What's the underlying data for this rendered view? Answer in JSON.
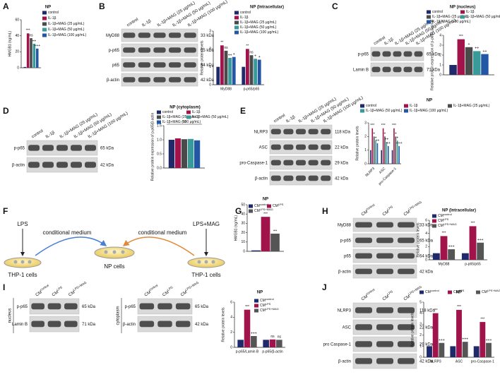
{
  "figure": {
    "letters": [
      "A",
      "B",
      "C",
      "D",
      "E",
      "F",
      "G",
      "H",
      "I",
      "J"
    ],
    "blots": [
      {
        "lanes": [
          "control",
          "IL-1β",
          "IL-1β+MAG (25 μg/mL)",
          "IL-1β+MAG (50 μg/mL)",
          "IL-1β+MAG (100 μg/mL)"
        ],
        "rows": [
          {
            "protein": "MyD88",
            "kda": "33 kDa"
          },
          {
            "protein": "p-p65",
            "kda": "65 kDa"
          },
          {
            "protein": "p65",
            "kda": "64 kDa"
          },
          {
            "protein": "β-actin",
            "kda": "42 kDa"
          }
        ]
      },
      {
        "lanes": [
          "control",
          "IL-1β",
          "IL-1β+MAG (25 μg/mL)",
          "IL-1β+MAG (50 μg/mL)",
          "IL-1β+MAG (100 μg/mL)"
        ],
        "rows": [
          {
            "protein": "p-p65",
            "kda": "65 kDa"
          },
          {
            "protein": "Lamin B",
            "kda": "71 kDa"
          }
        ]
      },
      {
        "lanes": [
          "control",
          "IL-1β",
          "IL-1β+MAG (25 μg/mL)",
          "IL-1β+MAG (50 μg/mL)",
          "IL-1β+MAG (100 μg/mL)"
        ],
        "rows": [
          {
            "protein": "p-p65",
            "kda": "65 kDa"
          },
          {
            "protein": "β-actin",
            "kda": "42 kDa"
          }
        ]
      },
      {
        "lanes": [
          "control",
          "IL-1β",
          "IL-1β+MAG (25 μg/mL)",
          "IL-1β+MAG (50 μg/mL)",
          "IL-1β+MAG (100 μg/mL)"
        ],
        "rows": [
          {
            "protein": "NLRP3",
            "kda": "118 kDa"
          },
          {
            "protein": "ASC",
            "kda": "22 kDa"
          },
          {
            "protein": "pro-Caspase-1",
            "kda": "29 kDa"
          },
          {
            "protein": "β-actin",
            "kda": "42 kDa"
          }
        ]
      },
      {
        "lanes": [
          {
            "base": "CM",
            "sup": "control"
          },
          {
            "base": "CM",
            "sup": "LPS"
          },
          {
            "base": "CM",
            "sup": "LPS+MAG"
          }
        ],
        "rows": [
          {
            "protein": "MyD88",
            "kda": "33 kDa"
          },
          {
            "protein": "p-p65",
            "kda": "65 kDa"
          },
          {
            "protein": "p65",
            "kda": "64 kDa"
          },
          {
            "protein": "β-actin",
            "kda": "42 kDa"
          }
        ]
      },
      {
        "side": "nucleus",
        "lanes": [
          {
            "base": "CM",
            "sup": "control"
          },
          {
            "base": "CM",
            "sup": "LPS"
          },
          {
            "base": "CM",
            "sup": "LPS+MAG"
          }
        ],
        "rows": [
          {
            "protein": "p-p65",
            "kda": "65 kDa"
          },
          {
            "protein": "Lamin B",
            "kda": "71 kDa"
          }
        ]
      },
      {
        "side": "cytoplasm",
        "lanes": [
          {
            "base": "CM",
            "sup": "control"
          },
          {
            "base": "CM",
            "sup": "LPS"
          },
          {
            "base": "CM",
            "sup": "LPS+MAG"
          }
        ],
        "rows": [
          {
            "protein": "p-p65",
            "kda": "65 kDa"
          },
          {
            "protein": "β-actin",
            "kda": "42 kDa"
          }
        ]
      },
      {
        "lanes": [
          {
            "base": "CM",
            "sup": "control"
          },
          {
            "base": "CM",
            "sup": "LPS"
          },
          {
            "base": "CM",
            "sup": "LPS+MAG"
          }
        ],
        "rows": [
          {
            "protein": "NLRP3",
            "kda": "118 kDa"
          },
          {
            "protein": "ASC",
            "kda": "22 kDa"
          },
          {
            "protein": "pro Caspase-1",
            "kda": "29 kDa"
          },
          {
            "protein": "β-actin",
            "kda": "42 kDa"
          }
        ]
      }
    ],
    "diagram": {
      "left_stimulus": "LPS",
      "right_stimulus": "LPS+MAG",
      "left_arrow": "conditional medium",
      "right_arrow": "conditional medium",
      "left_cells": "THP-1 cells",
      "center_cells": "NP cells",
      "right_cells": "THP-1 cells"
    }
  },
  "chart_data": [
    {
      "type": "bar",
      "title": "NP",
      "ylabel": "HMGB1 (ng/mL)",
      "categories": [
        null
      ],
      "ylim": [
        0,
        60
      ],
      "yticks": [
        0,
        20,
        40,
        60
      ],
      "series": [
        {
          "name": "control",
          "color": "#1f2a6b",
          "values": [
            1
          ],
          "sig": [
            null
          ]
        },
        {
          "name": "IL-1β",
          "color": "#a0144b",
          "values": [
            43
          ],
          "sig": [
            "***"
          ]
        },
        {
          "name": "IL-1β+MAG (25 μg/mL)",
          "color": "#4a4a4a",
          "values": [
            37
          ],
          "sig": [
            "ns"
          ]
        },
        {
          "name": "IL-1β+MAG (50 μg/mL)",
          "color": "#3a9a9a",
          "values": [
            30
          ],
          "sig": [
            "++"
          ]
        },
        {
          "name": "IL-1β+MAG (100 μg/mL)",
          "color": "#2456a6",
          "values": [
            24
          ],
          "sig": [
            "+++"
          ]
        }
      ]
    },
    {
      "type": "bar",
      "title": "NP (Intracellular)",
      "ylabel": "Relative protein levels",
      "categories": [
        "MyD88",
        "p-p65/p65"
      ],
      "ylim": [
        0,
        3
      ],
      "yticks": [
        0,
        1,
        2,
        3
      ],
      "series": [
        {
          "name": "control",
          "color": "#1f2a6b",
          "values": [
            1,
            1
          ],
          "sig": [
            null,
            null
          ]
        },
        {
          "name": "IL-1β",
          "color": "#a0144b",
          "values": [
            2.2,
            2.0
          ],
          "sig": [
            "**",
            "**"
          ]
        },
        {
          "name": "IL-1β+MAG (25 μg/mL)",
          "color": "#4a4a4a",
          "values": [
            1.9,
            1.65
          ],
          "sig": [
            "ns",
            "ns"
          ]
        },
        {
          "name": "IL-1β+MAG (50 μg/mL)",
          "color": "#3a9a9a",
          "values": [
            1.5,
            1.45
          ],
          "sig": [
            "++",
            "+"
          ]
        },
        {
          "name": "IL-1β+MAG (100 μg/mL)",
          "color": "#2456a6",
          "values": [
            1.55,
            1.4
          ],
          "sig": [
            "+",
            "+"
          ]
        }
      ]
    },
    {
      "type": "bar",
      "title": "NP (nucleus)",
      "ylabel": "Relative protein expression of p-p65/Lamin B",
      "categories": [
        null
      ],
      "ylim": [
        0,
        4
      ],
      "yticks": [
        0,
        1,
        2,
        3,
        4
      ],
      "series": [
        {
          "name": "control",
          "color": "#1f2a6b",
          "values": [
            1
          ],
          "sig": [
            null
          ]
        },
        {
          "name": "IL-1β",
          "color": "#a0144b",
          "values": [
            3.6
          ],
          "sig": [
            "***"
          ]
        },
        {
          "name": "IL-1β+MAG (25 μg/mL)",
          "color": "#4a4a4a",
          "values": [
            2.8
          ],
          "sig": [
            "+"
          ]
        },
        {
          "name": "IL-1β+MAG (50 μg/mL)",
          "color": "#3a9a9a",
          "values": [
            2.4
          ],
          "sig": [
            "++"
          ]
        },
        {
          "name": "IL-1β+MAG (100 μg/mL)",
          "color": "#2456a6",
          "values": [
            2.1
          ],
          "sig": [
            "++"
          ]
        }
      ]
    },
    {
      "type": "bar",
      "title": "NP (cytoplasm)",
      "ylabel": "Relative protein expression of p-p65/β-actin",
      "categories": [
        null
      ],
      "ylim": [
        0,
        1.5
      ],
      "yticks": [
        {
          "value": 0,
          "label": "0.0"
        },
        0.5,
        {
          "value": 1,
          "label": "1.0"
        },
        1.5
      ],
      "annotation": "ns",
      "series": [
        {
          "name": "control",
          "color": "#1f2a6b",
          "values": [
            1.0
          ],
          "sig": [
            null
          ]
        },
        {
          "name": "IL-1β",
          "color": "#a0144b",
          "values": [
            1.05
          ],
          "sig": [
            null
          ]
        },
        {
          "name": "IL-1β+MAG (25 μg/mL)",
          "color": "#4a4a4a",
          "values": [
            1.02
          ],
          "sig": [
            null
          ]
        },
        {
          "name": "IL-1β+MAG (50 μg/mL)",
          "color": "#3a9a9a",
          "values": [
            1.03
          ],
          "sig": [
            null
          ]
        },
        {
          "name": "IL-1β+MAG (100 μg/mL)",
          "color": "#2456a6",
          "values": [
            0.98
          ],
          "sig": [
            null
          ]
        }
      ]
    },
    {
      "type": "bar",
      "title": "NP",
      "ylabel": "Relative protein levels",
      "categories": [
        "NLRP3",
        "ASC",
        "pro-Caspase-1"
      ],
      "ylim": [
        0,
        3
      ],
      "yticks": [
        0,
        1,
        2,
        3
      ],
      "series": [
        {
          "name": "control",
          "color": "#1f2a6b",
          "values": [
            1,
            1,
            1
          ],
          "sig": [
            null,
            null,
            null
          ]
        },
        {
          "name": "IL-1β",
          "color": "#a0144b",
          "values": [
            2.6,
            2.6,
            2.6
          ],
          "sig": [
            "***",
            "***",
            "***"
          ]
        },
        {
          "name": "IL-1β+MAG (25 μg/mL)",
          "color": "#4a4a4a",
          "values": [
            2.0,
            2.0,
            2.0
          ],
          "sig": [
            "+",
            "+",
            "+"
          ]
        },
        {
          "name": "IL-1β+MAG (50 μg/mL)",
          "color": "#3a9a9a",
          "values": [
            1.7,
            1.6,
            1.7
          ],
          "sig": [
            "+",
            "++",
            "+"
          ]
        },
        {
          "name": "IL-1β+MAG (100 μg/mL)",
          "color": "#2456a6",
          "values": [
            1.5,
            1.3,
            1.3
          ],
          "sig": [
            "++",
            "++",
            "+++"
          ]
        }
      ]
    },
    {
      "type": "bar",
      "title": "NP",
      "ylabel": "HMGB1 (ng/mL)",
      "categories": [
        null
      ],
      "ylim": [
        0,
        50
      ],
      "yticks": [
        0,
        10,
        20,
        30,
        40,
        50
      ],
      "series": [
        {
          "name": "CM",
          "name_sup": "control",
          "color": "#1f2a6b",
          "values": [
            1
          ],
          "sig": [
            null
          ]
        },
        {
          "name": "CM",
          "name_sup": "LPS",
          "color": "#a0144b",
          "values": [
            37
          ],
          "sig": [
            "***"
          ]
        },
        {
          "name": "CM",
          "name_sup": "LPS+MAG",
          "color": "#555555",
          "values": [
            19
          ],
          "sig": [
            "++"
          ]
        }
      ]
    },
    {
      "type": "bar",
      "title": "NP (Intracellular)",
      "ylabel": "Relative protein levels",
      "categories": [
        "MyD88",
        "p-p65/p65"
      ],
      "ylim": [
        0,
        6
      ],
      "yticks": [
        0,
        2,
        4,
        6
      ],
      "series": [
        {
          "name": "CM",
          "name_sup": "control",
          "color": "#1f2a6b",
          "values": [
            1,
            1
          ],
          "sig": [
            null,
            null
          ]
        },
        {
          "name": "CM",
          "name_sup": "LPS",
          "color": "#a0144b",
          "values": [
            3.6,
            5.1
          ],
          "sig": [
            "***",
            "***"
          ]
        },
        {
          "name": "CM",
          "name_sup": "LPS+MAG",
          "color": "#555555",
          "values": [
            1.6,
            2.6
          ],
          "sig": [
            "+++",
            "+++"
          ]
        }
      ]
    },
    {
      "type": "bar",
      "title": "NP",
      "ylabel": "Relative protein levels",
      "categories": [
        "p-p65/Lamin B",
        "p-p65/β-actin"
      ],
      "ylim": [
        0,
        6
      ],
      "yticks": [
        0,
        2,
        4,
        6
      ],
      "series": [
        {
          "name": "CM",
          "name_sup": "control",
          "color": "#1f2a6b",
          "values": [
            1,
            1
          ],
          "sig": [
            null,
            null
          ]
        },
        {
          "name": "CM",
          "name_sup": "LPS",
          "color": "#a0144b",
          "values": [
            5.0,
            1.05
          ],
          "sig": [
            "***",
            "ns"
          ]
        },
        {
          "name": "CM",
          "name_sup": "LPS+MAG",
          "color": "#555555",
          "values": [
            1.5,
            1.0
          ],
          "sig": [
            "+++",
            "ns"
          ]
        }
      ]
    },
    {
      "type": "bar",
      "title": "NP",
      "ylabel": "Relative protein levels",
      "categories": [
        "NLRP3",
        "ASC",
        "pro-Caspase-1"
      ],
      "ylim": [
        0,
        5
      ],
      "yticks": [
        0,
        1,
        2,
        3,
        4,
        5
      ],
      "series": [
        {
          "name": "CM",
          "name_sup": "control",
          "color": "#1f2a6b",
          "values": [
            1,
            1,
            1
          ],
          "sig": [
            null,
            null,
            null
          ]
        },
        {
          "name": "CM",
          "name_sup": "LPS",
          "color": "#a0144b",
          "values": [
            4.0,
            4.3,
            3.2
          ],
          "sig": [
            "***",
            "***",
            "***"
          ]
        },
        {
          "name": "CM",
          "name_sup": "LPS+MAG",
          "color": "#555555",
          "values": [
            1.3,
            1.4,
            1.3
          ],
          "sig": [
            "+++",
            "+++",
            "+++"
          ]
        }
      ]
    }
  ]
}
